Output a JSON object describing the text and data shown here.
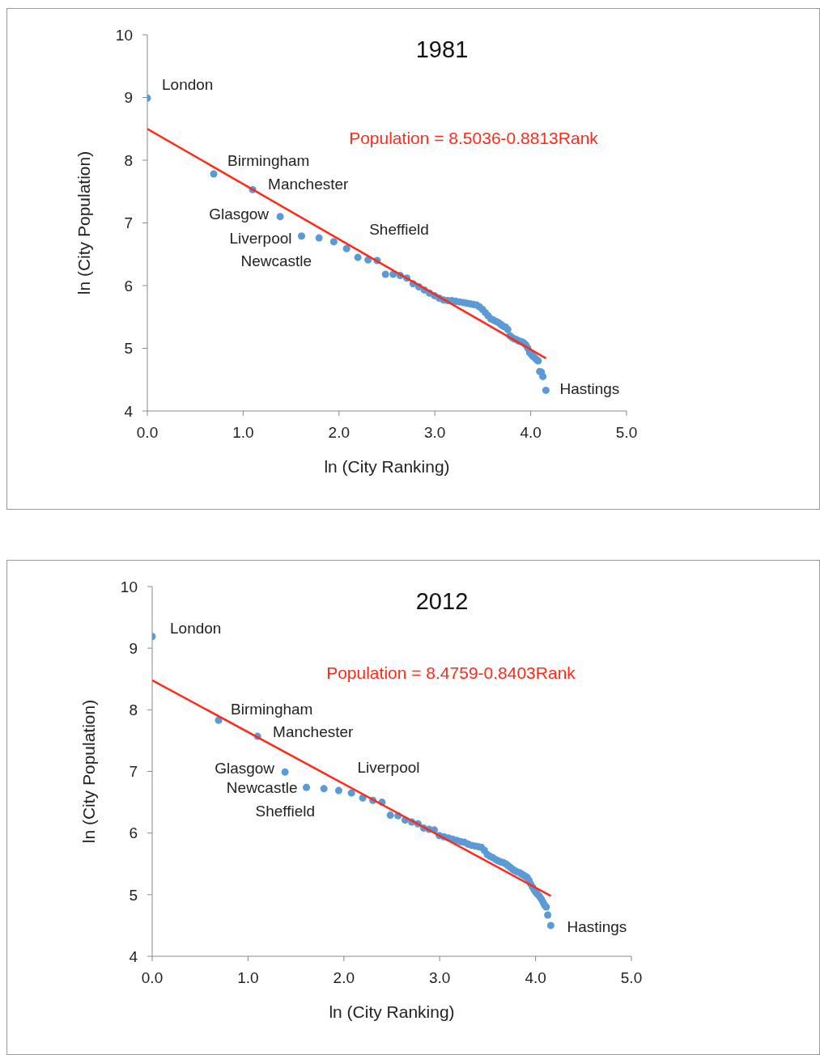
{
  "chart_data": [
    {
      "type": "scatter",
      "title": "1981",
      "xlabel": "ln (City Ranking)",
      "ylabel": "ln (City Population)",
      "xlim": [
        0,
        5
      ],
      "xticks": [
        {
          "value": 0,
          "label": "0.0"
        },
        {
          "value": 1,
          "label": "1.0"
        },
        {
          "value": 2,
          "label": "2.0"
        },
        {
          "value": 3,
          "label": "3.0"
        },
        {
          "value": 4,
          "label": "4.0"
        },
        {
          "value": 5,
          "label": "5.0"
        }
      ],
      "ylim": [
        4,
        10
      ],
      "yticks": [
        4,
        5,
        6,
        7,
        8,
        9,
        10
      ],
      "annotations": [
        "Population = 8.5036-0.8813Rank",
        {
          "text": "London",
          "x": 0,
          "y": 8.99
        },
        {
          "text": "Birmingham",
          "x": 0.693,
          "y": 7.78
        },
        {
          "text": "Manchester",
          "x": 1.099,
          "y": 7.53
        },
        {
          "text": "Glasgow",
          "x": 1.386,
          "y": 7.1
        },
        {
          "text": "Liverpool",
          "x": 1.609,
          "y": 6.79
        },
        {
          "text": "Newcastle",
          "x": 1.792,
          "y": 6.76
        },
        {
          "text": "Sheffield",
          "x": 2.079,
          "y": 6.59
        },
        {
          "text": "Hastings",
          "x": 4.159,
          "y": 4.33
        }
      ],
      "series": [
        {
          "marker": "circle",
          "color": "#5b9bd5",
          "x": [
            0,
            0.693,
            1.099,
            1.386,
            1.609,
            1.792,
            1.946,
            2.079,
            2.197,
            2.303,
            2.398,
            2.485,
            2.565,
            2.639,
            2.708,
            2.773,
            2.833,
            2.89,
            2.944,
            2.996,
            3.045,
            3.091,
            3.135,
            3.178,
            3.219,
            3.258,
            3.296,
            3.332,
            3.367,
            3.401,
            3.434,
            3.466,
            3.497,
            3.526,
            3.555,
            3.584,
            3.611,
            3.638,
            3.664,
            3.689,
            3.714,
            3.738,
            3.761,
            3.784,
            3.807,
            3.829,
            3.85,
            3.871,
            3.892,
            3.912,
            3.932,
            3.951,
            3.97,
            3.989,
            4.007,
            4.025,
            4.043,
            4.06,
            4.078,
            4.094,
            4.111,
            4.127,
            4.159
          ],
          "values": [
            8.99,
            7.78,
            7.53,
            7.1,
            6.79,
            6.76,
            6.7,
            6.59,
            6.45,
            6.41,
            6.4,
            6.18,
            6.18,
            6.16,
            6.12,
            6.03,
            5.98,
            5.93,
            5.88,
            5.84,
            5.8,
            5.77,
            5.76,
            5.76,
            5.75,
            5.74,
            5.73,
            5.72,
            5.71,
            5.7,
            5.69,
            5.66,
            5.62,
            5.57,
            5.52,
            5.47,
            5.45,
            5.43,
            5.41,
            5.38,
            5.35,
            5.34,
            5.3,
            5.2,
            5.17,
            5.15,
            5.14,
            5.12,
            5.11,
            5.1,
            5.08,
            5.05,
            5,
            4.93,
            4.9,
            4.87,
            4.85,
            4.82,
            4.8,
            4.63,
            4.62,
            4.55,
            4.33
          ]
        },
        {
          "type": "line",
          "marker": "none",
          "color": "#ff2a1a",
          "x": [
            0,
            4.159
          ],
          "values": [
            8.5,
            4.84
          ]
        }
      ]
    },
    {
      "type": "scatter",
      "title": "2012",
      "xlabel": "ln (City Ranking)",
      "ylabel": "ln (City Population)",
      "xlim": [
        0,
        5
      ],
      "xticks": [
        {
          "value": 0,
          "label": "0.0"
        },
        {
          "value": 1,
          "label": "1.0"
        },
        {
          "value": 2,
          "label": "2.0"
        },
        {
          "value": 3,
          "label": "3.0"
        },
        {
          "value": 4,
          "label": "4.0"
        },
        {
          "value": 5,
          "label": "5.0"
        }
      ],
      "ylim": [
        4,
        10
      ],
      "yticks": [
        4,
        5,
        6,
        7,
        8,
        9,
        10
      ],
      "annotations": [
        "Population = 8.4759-0.8403Rank",
        {
          "text": "London",
          "x": 0,
          "y": 9.19
        },
        {
          "text": "Birmingham",
          "x": 0.693,
          "y": 7.83
        },
        {
          "text": "Manchester",
          "x": 1.099,
          "y": 7.57
        },
        {
          "text": "Glasgow",
          "x": 1.386,
          "y": 6.99
        },
        {
          "text": "Newcastle",
          "x": 1.609,
          "y": 6.74
        },
        {
          "text": "Sheffield",
          "x": 1.792,
          "y": 6.72
        },
        {
          "text": "Liverpool",
          "x": 1.946,
          "y": 6.69
        },
        {
          "text": "Hastings",
          "x": 4.159,
          "y": 4.5
        }
      ],
      "series": [
        {
          "marker": "circle",
          "color": "#5b9bd5",
          "x": [
            0,
            0.693,
            1.099,
            1.386,
            1.609,
            1.792,
            1.946,
            2.079,
            2.197,
            2.303,
            2.398,
            2.485,
            2.565,
            2.639,
            2.708,
            2.773,
            2.833,
            2.89,
            2.944,
            2.996,
            3.045,
            3.091,
            3.135,
            3.178,
            3.219,
            3.258,
            3.296,
            3.332,
            3.367,
            3.401,
            3.434,
            3.466,
            3.497,
            3.526,
            3.555,
            3.584,
            3.611,
            3.638,
            3.664,
            3.689,
            3.714,
            3.738,
            3.761,
            3.784,
            3.807,
            3.829,
            3.85,
            3.871,
            3.892,
            3.912,
            3.932,
            3.951,
            3.97,
            3.989,
            4.007,
            4.025,
            4.043,
            4.06,
            4.078,
            4.094,
            4.111,
            4.127,
            4.159
          ],
          "values": [
            9.19,
            7.83,
            7.57,
            6.99,
            6.74,
            6.72,
            6.69,
            6.65,
            6.57,
            6.53,
            6.5,
            6.29,
            6.28,
            6.21,
            6.18,
            6.15,
            6.08,
            6.06,
            6.05,
            5.96,
            5.94,
            5.92,
            5.9,
            5.88,
            5.86,
            5.85,
            5.82,
            5.8,
            5.79,
            5.78,
            5.77,
            5.72,
            5.65,
            5.62,
            5.6,
            5.57,
            5.55,
            5.53,
            5.52,
            5.5,
            5.47,
            5.44,
            5.41,
            5.39,
            5.37,
            5.36,
            5.34,
            5.32,
            5.3,
            5.28,
            5.23,
            5.17,
            5.12,
            5.07,
            5.03,
            5,
            4.97,
            4.93,
            4.88,
            4.83,
            4.8,
            4.67,
            4.5
          ]
        },
        {
          "type": "line",
          "marker": "none",
          "color": "#ff2a1a",
          "x": [
            0,
            4.159
          ],
          "values": [
            8.48,
            4.98
          ]
        }
      ]
    }
  ]
}
